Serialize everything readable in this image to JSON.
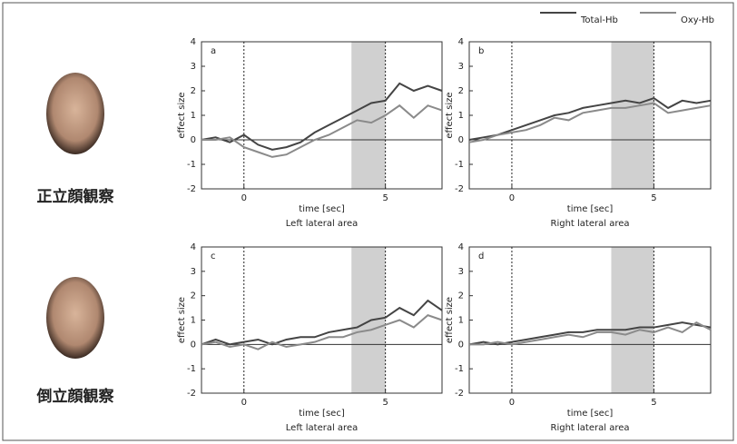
{
  "row_labels": [
    "正立顔観察",
    "倒立顔観察"
  ],
  "chart_data": [
    {
      "type": "line",
      "panel": "a",
      "xlabel": "time [sec]",
      "subtitle": "Left lateral area",
      "ylabel": "effect size",
      "x": [
        -1.5,
        -1,
        -0.5,
        0,
        0.5,
        1,
        1.5,
        2,
        2.5,
        3,
        3.5,
        4,
        4.5,
        5,
        5.5,
        6,
        6.5,
        7
      ],
      "xlim": [
        -1.5,
        7
      ],
      "xticks": [
        0,
        5
      ],
      "ylim": [
        -2,
        4
      ],
      "yticks": [
        -2,
        -1,
        0,
        1,
        2,
        3,
        4
      ],
      "vlines": [
        0,
        5
      ],
      "shade": [
        3.8,
        5
      ],
      "series": [
        {
          "name": "Total-Hb",
          "color": "#444444",
          "values": [
            0,
            0.1,
            -0.1,
            0.2,
            -0.2,
            -0.4,
            -0.3,
            -0.1,
            0.3,
            0.6,
            0.9,
            1.2,
            1.5,
            1.6,
            2.3,
            2.0,
            2.2,
            2.0
          ]
        },
        {
          "name": "Oxy-Hb",
          "color": "#8a8a8a",
          "values": [
            0,
            0,
            0.1,
            -0.3,
            -0.5,
            -0.7,
            -0.6,
            -0.3,
            0,
            0.2,
            0.5,
            0.8,
            0.7,
            1.0,
            1.4,
            0.9,
            1.4,
            1.2
          ]
        }
      ]
    },
    {
      "type": "line",
      "panel": "b",
      "xlabel": "time [sec]",
      "subtitle": "Right lateral area",
      "ylabel": "effect size",
      "x": [
        -1.5,
        -1,
        -0.5,
        0,
        0.5,
        1,
        1.5,
        2,
        2.5,
        3,
        3.5,
        4,
        4.5,
        5,
        5.5,
        6,
        6.5,
        7
      ],
      "xlim": [
        -1.5,
        7
      ],
      "xticks": [
        0,
        5
      ],
      "ylim": [
        -2,
        4
      ],
      "yticks": [
        -2,
        -1,
        0,
        1,
        2,
        3,
        4
      ],
      "vlines": [
        0,
        5
      ],
      "shade": [
        3.5,
        5
      ],
      "series": [
        {
          "name": "Total-Hb",
          "color": "#444444",
          "values": [
            0,
            0.1,
            0.2,
            0.4,
            0.6,
            0.8,
            1.0,
            1.1,
            1.3,
            1.4,
            1.5,
            1.6,
            1.5,
            1.7,
            1.3,
            1.6,
            1.5,
            1.6
          ]
        },
        {
          "name": "Oxy-Hb",
          "color": "#8a8a8a",
          "values": [
            -0.1,
            0,
            0.2,
            0.3,
            0.4,
            0.6,
            0.9,
            0.8,
            1.1,
            1.2,
            1.3,
            1.3,
            1.4,
            1.5,
            1.1,
            1.2,
            1.3,
            1.4
          ]
        }
      ]
    },
    {
      "type": "line",
      "panel": "c",
      "xlabel": "time [sec]",
      "subtitle": "Left lateral area",
      "ylabel": "effect size",
      "x": [
        -1.5,
        -1,
        -0.5,
        0,
        0.5,
        1,
        1.5,
        2,
        2.5,
        3,
        3.5,
        4,
        4.5,
        5,
        5.5,
        6,
        6.5,
        7
      ],
      "xlim": [
        -1.5,
        7
      ],
      "xticks": [
        0,
        5
      ],
      "ylim": [
        -2,
        4
      ],
      "yticks": [
        -2,
        -1,
        0,
        1,
        2,
        3,
        4
      ],
      "vlines": [
        0,
        5
      ],
      "shade": [
        3.8,
        5
      ],
      "series": [
        {
          "name": "Total-Hb",
          "color": "#444444",
          "values": [
            0,
            0.2,
            0,
            0.1,
            0.2,
            0,
            0.2,
            0.3,
            0.3,
            0.5,
            0.6,
            0.7,
            1.0,
            1.1,
            1.5,
            1.2,
            1.8,
            1.4
          ]
        },
        {
          "name": "Oxy-Hb",
          "color": "#8a8a8a",
          "values": [
            0,
            0.1,
            -0.1,
            0,
            -0.2,
            0.1,
            -0.1,
            0,
            0.1,
            0.3,
            0.3,
            0.5,
            0.6,
            0.8,
            1.0,
            0.7,
            1.2,
            1.0
          ]
        }
      ]
    },
    {
      "type": "line",
      "panel": "d",
      "xlabel": "time [sec]",
      "subtitle": "Right lateral area",
      "ylabel": "effect size",
      "x": [
        -1.5,
        -1,
        -0.5,
        0,
        0.5,
        1,
        1.5,
        2,
        2.5,
        3,
        3.5,
        4,
        4.5,
        5,
        5.5,
        6,
        6.5,
        7
      ],
      "xlim": [
        -1.5,
        7
      ],
      "xticks": [
        0,
        5
      ],
      "ylim": [
        -2,
        4
      ],
      "yticks": [
        -2,
        -1,
        0,
        1,
        2,
        3,
        4
      ],
      "vlines": [
        0,
        5
      ],
      "shade": [
        3.5,
        5
      ],
      "series": [
        {
          "name": "Total-Hb",
          "color": "#444444",
          "values": [
            0,
            0.1,
            0,
            0.1,
            0.2,
            0.3,
            0.4,
            0.5,
            0.5,
            0.6,
            0.6,
            0.6,
            0.7,
            0.7,
            0.8,
            0.9,
            0.8,
            0.7
          ]
        },
        {
          "name": "Oxy-Hb",
          "color": "#8a8a8a",
          "values": [
            0,
            0,
            0.1,
            0,
            0.1,
            0.2,
            0.3,
            0.4,
            0.3,
            0.5,
            0.5,
            0.4,
            0.6,
            0.5,
            0.7,
            0.5,
            0.9,
            0.6
          ]
        }
      ]
    }
  ]
}
